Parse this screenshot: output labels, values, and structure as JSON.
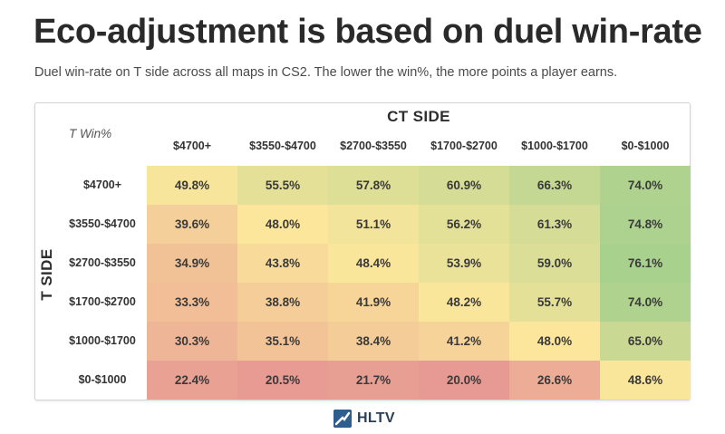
{
  "header": {
    "title": "Eco-adjustment is based on duel win-rate",
    "subtitle": "Duel win-rate on T side across all maps in CS2. The lower the win%, the more points a player earns."
  },
  "chart_data": {
    "type": "heatmap",
    "corner_label": "T Win%",
    "x_axis_title": "CT SIDE",
    "y_axis_title": "T SIDE",
    "columns": [
      "$4700+",
      "$3550-$4700",
      "$2700-$3550",
      "$1700-$2700",
      "$1000-$1700",
      "$0-$1000"
    ],
    "rows": [
      "$4700+",
      "$3550-$4700",
      "$2700-$3550",
      "$1700-$2700",
      "$1000-$1700",
      "$0-$1000"
    ],
    "values": [
      [
        49.8,
        55.5,
        57.8,
        60.9,
        66.3,
        74.0
      ],
      [
        39.6,
        48.0,
        51.1,
        56.2,
        61.3,
        74.8
      ],
      [
        34.9,
        43.8,
        48.4,
        53.9,
        59.0,
        76.1
      ],
      [
        33.3,
        38.8,
        41.9,
        48.2,
        55.7,
        74.0
      ],
      [
        30.3,
        35.1,
        38.4,
        41.2,
        48.0,
        65.0
      ],
      [
        22.4,
        20.5,
        21.7,
        20.0,
        26.6,
        48.6
      ]
    ],
    "value_suffix": "%",
    "color_scale": {
      "low": "#e79a93",
      "mid": "#fbe69b",
      "high": "#a9d18e"
    }
  },
  "footer": {
    "logo_text": "HLTV",
    "logo_color": "#2f5e8e"
  }
}
